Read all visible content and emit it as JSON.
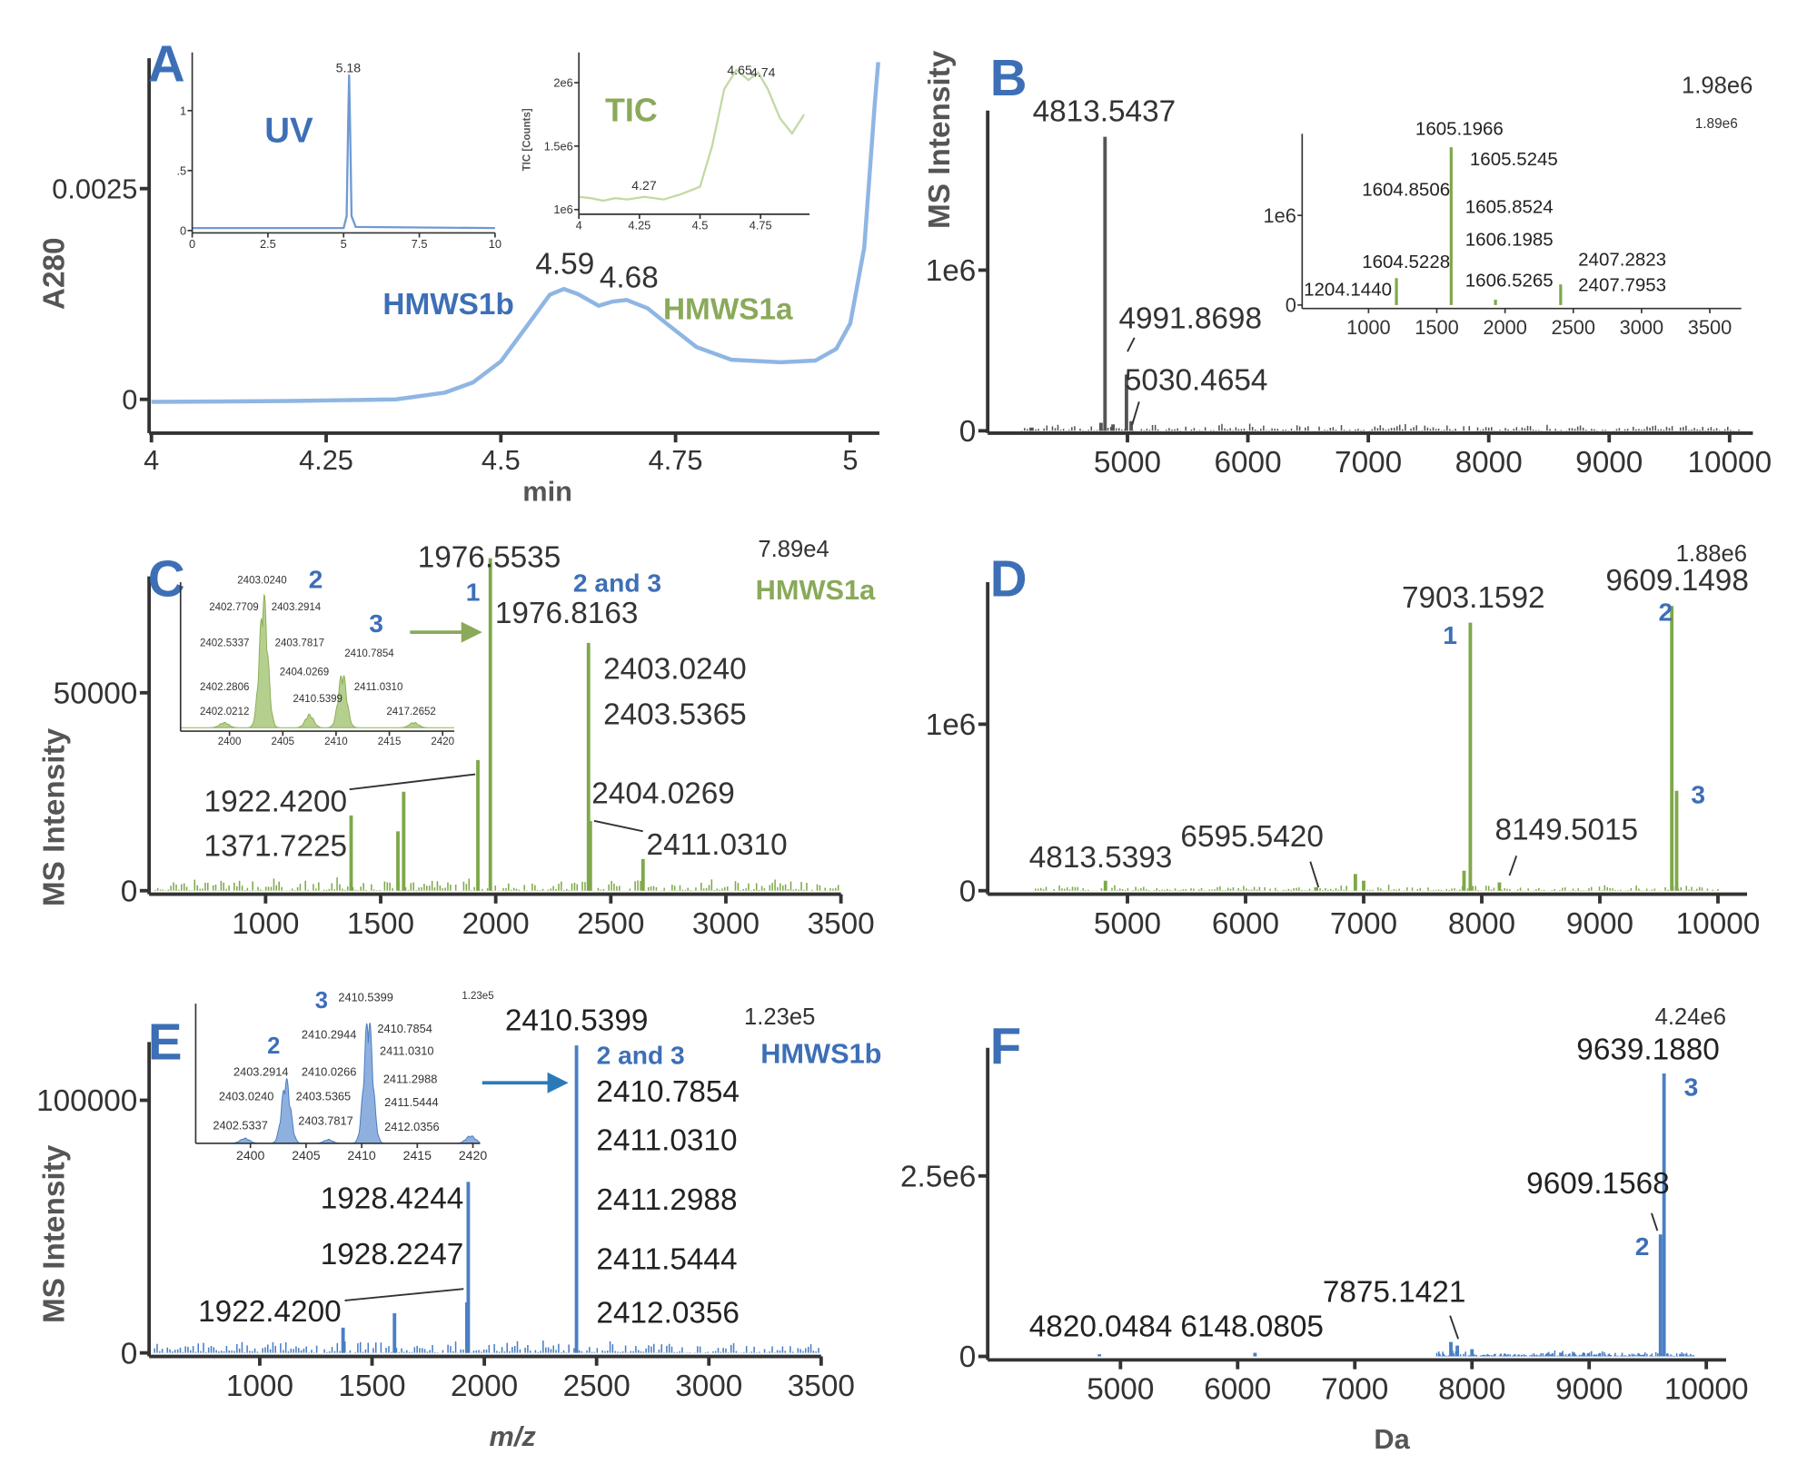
{
  "colors": {
    "blue": "#3d6fb6",
    "green": "#8aa95a",
    "uv_trace": "#8fb6e3",
    "tic_trace": "#c3d9a4",
    "gray_spectrum": "#555555",
    "green_spectrum": "#7ea84a",
    "blue_spectrum": "#4a7fc4"
  },
  "chart_data": [
    {
      "panel": "A",
      "letter": "A",
      "type": "line",
      "xlabel": "min",
      "ylabel": "A280",
      "xticks": [
        "4",
        "4.25",
        "4.5",
        "4.75",
        "5"
      ],
      "yticks": [
        "0",
        "0.0025"
      ],
      "xlim": [
        4,
        5.04
      ],
      "ylim": [
        -0.00045,
        0.004
      ],
      "points": [
        [
          4.0,
          -3e-05
        ],
        [
          4.2,
          -2e-05
        ],
        [
          4.35,
          0.0
        ],
        [
          4.42,
          8e-05
        ],
        [
          4.46,
          0.0002
        ],
        [
          4.5,
          0.00045
        ],
        [
          4.54,
          0.0009
        ],
        [
          4.57,
          0.00124
        ],
        [
          4.59,
          0.00131
        ],
        [
          4.61,
          0.00125
        ],
        [
          4.64,
          0.00111
        ],
        [
          4.66,
          0.00116
        ],
        [
          4.68,
          0.00118
        ],
        [
          4.71,
          0.00108
        ],
        [
          4.74,
          0.00088
        ],
        [
          4.78,
          0.00062
        ],
        [
          4.83,
          0.00047
        ],
        [
          4.9,
          0.00044
        ],
        [
          4.95,
          0.00046
        ],
        [
          4.98,
          0.0006
        ],
        [
          5.0,
          0.0009
        ],
        [
          5.02,
          0.0018
        ],
        [
          5.035,
          0.0035
        ],
        [
          5.04,
          0.004
        ]
      ],
      "annotations": [
        {
          "text": "4.59"
        },
        {
          "text": "4.68"
        },
        {
          "text": "HMWS1b"
        },
        {
          "text": "HMWS1a"
        }
      ]
    },
    {
      "panel": "A-inset-UV",
      "type": "line",
      "title": "UV",
      "xticks": [
        "0",
        "2.5",
        "5",
        "7.5",
        "10"
      ],
      "yticks": [
        "0",
        ".5",
        "1"
      ],
      "xlim": [
        0,
        10
      ],
      "points": [
        [
          0,
          0.02
        ],
        [
          5.0,
          0.02
        ],
        [
          5.1,
          0.12
        ],
        [
          5.15,
          0.9
        ],
        [
          5.18,
          1.3
        ],
        [
          5.21,
          0.9
        ],
        [
          5.26,
          0.12
        ],
        [
          5.4,
          0.03
        ],
        [
          10,
          0.02
        ]
      ],
      "annotations": [
        {
          "text": "UV"
        },
        {
          "text": "5.18"
        }
      ]
    },
    {
      "panel": "A-inset-TIC",
      "type": "line",
      "title": "TIC",
      "ylabel": "TIC [Counts]",
      "xticks": [
        "4",
        "4.25",
        "4.5",
        "4.75"
      ],
      "yticks": [
        "1e6",
        "1.5e6",
        "2e6"
      ],
      "points": [
        [
          4,
          1100000.0
        ],
        [
          4.05,
          1090000.0
        ],
        [
          4.1,
          1070000.0
        ],
        [
          4.15,
          1090000.0
        ],
        [
          4.2,
          1080000.0
        ],
        [
          4.27,
          1100000.0
        ],
        [
          4.35,
          1080000.0
        ],
        [
          4.42,
          1120000.0
        ],
        [
          4.5,
          1180000.0
        ],
        [
          4.55,
          1500000.0
        ],
        [
          4.6,
          1950000.0
        ],
        [
          4.65,
          2100000.0
        ],
        [
          4.7,
          2020000.0
        ],
        [
          4.74,
          2080000.0
        ],
        [
          4.78,
          1950000.0
        ],
        [
          4.83,
          1720000.0
        ],
        [
          4.88,
          1600000.0
        ],
        [
          4.93,
          1750000.0
        ]
      ],
      "annotations": [
        {
          "text": "TIC"
        },
        {
          "text": "4.27"
        },
        {
          "text": "4.65"
        },
        {
          "text": "4.74"
        }
      ]
    },
    {
      "panel": "B",
      "letter": "B",
      "type": "bar",
      "ylabel": "MS Intensity",
      "scale_max": "1.98e6",
      "xticks": [
        "5000",
        "6000",
        "7000",
        "8000",
        "9000",
        "10000"
      ],
      "yticks": [
        "0",
        "1e6"
      ],
      "peaks": [
        [
          4200,
          20000.0
        ],
        [
          4780,
          50000.0
        ],
        [
          4813.5437,
          1830000.0
        ],
        [
          4880,
          40000.0
        ],
        [
          4991.8698,
          350000.0
        ],
        [
          5030.4654,
          60000.0
        ]
      ],
      "annotations": [
        {
          "text": "4813.5437"
        },
        {
          "text": "4991.8698"
        },
        {
          "text": "5030.4654"
        }
      ]
    },
    {
      "panel": "B-inset",
      "type": "bar",
      "scale_max": "1.89e6",
      "xticks": [
        "1000",
        "1500",
        "2000",
        "2500",
        "3000",
        "3500"
      ],
      "yticks": [
        "0",
        "1e6"
      ],
      "peaks": [
        [
          1204.144,
          300000.0
        ],
        [
          1605.1966,
          1760000.0
        ],
        [
          1930,
          60000.0
        ],
        [
          2407.2823,
          230000.0
        ]
      ],
      "annotations": [
        {
          "text": "1605.1966"
        },
        {
          "text": "1605.5245"
        },
        {
          "text": "1604.8506"
        },
        {
          "text": "1605.8524"
        },
        {
          "text": "1606.1985"
        },
        {
          "text": "1604.5228"
        },
        {
          "text": "1606.5265"
        },
        {
          "text": "1204.1440"
        },
        {
          "text": "2407.2823"
        },
        {
          "text": "2407.7953"
        }
      ]
    },
    {
      "panel": "C",
      "letter": "C",
      "type": "bar",
      "ylabel": "MS Intensity",
      "scale_max": "7.89e4",
      "species": "HMWS1a",
      "xticks": [
        "1000",
        "1500",
        "2000",
        "2500",
        "3000",
        "3500"
      ],
      "yticks": [
        "0",
        "50000"
      ],
      "peaks": [
        [
          1371.7225,
          19000
        ],
        [
          1575,
          15000
        ],
        [
          1600,
          25000
        ],
        [
          1922.42,
          33000
        ],
        [
          1976.5535,
          84000
        ],
        [
          2403.024,
          62600
        ],
        [
          2411.031,
          17600
        ],
        [
          2640,
          8000
        ]
      ],
      "annotations": [
        {
          "text": "1976.5535"
        },
        {
          "text": "1976.8163"
        },
        {
          "text": "2403.0240"
        },
        {
          "text": "2403.5365"
        },
        {
          "text": "2404.0269"
        },
        {
          "text": "2411.0310"
        },
        {
          "text": "1922.4200"
        },
        {
          "text": "1371.7225"
        },
        {
          "text": "1"
        },
        {
          "text": "2 and 3"
        },
        {
          "text": "2"
        },
        {
          "text": "3"
        }
      ]
    },
    {
      "panel": "C-inset",
      "type": "area",
      "xticks": [
        "2400",
        "2405",
        "2410",
        "2415",
        "2420"
      ],
      "clusters": [
        [
          2399.5,
          4
        ],
        [
          2403.2,
          100
        ],
        [
          2407.5,
          10
        ],
        [
          2410.6,
          42
        ],
        [
          2417.3,
          4
        ]
      ],
      "annotations": [
        {
          "text": "2403.0240"
        },
        {
          "text": "2402.7709"
        },
        {
          "text": "2403.2914"
        },
        {
          "text": "2402.5337"
        },
        {
          "text": "2403.7817"
        },
        {
          "text": "2410.7854"
        },
        {
          "text": "2404.0269"
        },
        {
          "text": "2402.2806"
        },
        {
          "text": "2410.5399"
        },
        {
          "text": "2411.0310"
        },
        {
          "text": "2402.0212"
        },
        {
          "text": "2417.2652"
        }
      ]
    },
    {
      "panel": "D",
      "letter": "D",
      "type": "bar",
      "scale_max": "1.88e6",
      "xticks": [
        "5000",
        "6000",
        "7000",
        "8000",
        "9000",
        "10000"
      ],
      "yticks": [
        "0",
        "1e6"
      ],
      "peaks": [
        [
          4813.5393,
          60000.0
        ],
        [
          6595.542,
          20000.0
        ],
        [
          6930,
          100000.0
        ],
        [
          7000,
          60000.0
        ],
        [
          7850,
          120000.0
        ],
        [
          7903.1592,
          1610000.0
        ],
        [
          8149.5015,
          50000.0
        ],
        [
          9609.1498,
          1710000.0
        ],
        [
          9650,
          600000.0
        ]
      ],
      "annotations": [
        {
          "text": "7903.1592"
        },
        {
          "text": "9609.1498"
        },
        {
          "text": "4813.5393"
        },
        {
          "text": "6595.5420"
        },
        {
          "text": "8149.5015"
        },
        {
          "text": "1"
        },
        {
          "text": "2"
        },
        {
          "text": "3"
        }
      ]
    },
    {
      "panel": "E",
      "letter": "E",
      "type": "bar",
      "xlabel": "m/z",
      "ylabel": "MS Intensity",
      "scale_max": "1.23e5",
      "species": "HMWS1b",
      "xticks": [
        "1000",
        "1500",
        "2000",
        "2500",
        "3000",
        "3500"
      ],
      "yticks": [
        "0",
        "100000"
      ],
      "peaks": [
        [
          1371,
          10000
        ],
        [
          1600,
          15700
        ],
        [
          1922.42,
          20000
        ],
        [
          1928.4244,
          67700
        ],
        [
          2410.5399,
          121700
        ]
      ],
      "annotations": [
        {
          "text": "2410.5399"
        },
        {
          "text": "2410.7854"
        },
        {
          "text": "2411.0310"
        },
        {
          "text": "2411.2988"
        },
        {
          "text": "2411.5444"
        },
        {
          "text": "2412.0356"
        },
        {
          "text": "1928.4244"
        },
        {
          "text": "1928.2247"
        },
        {
          "text": "1922.4200"
        },
        {
          "text": "2 and 3"
        }
      ]
    },
    {
      "panel": "E-inset",
      "type": "area",
      "scale_max": "1.23e5",
      "xticks": [
        "2400",
        "2405",
        "2410",
        "2415",
        "2420"
      ],
      "clusters": [
        [
          2399.5,
          4
        ],
        [
          2403.2,
          50
        ],
        [
          2407,
          3
        ],
        [
          2410.6,
          100
        ],
        [
          2419.8,
          6
        ]
      ],
      "annotations": [
        {
          "text": "2410.5399"
        },
        {
          "text": "2410.2944"
        },
        {
          "text": "2410.7854"
        },
        {
          "text": "2411.0310"
        },
        {
          "text": "2403.2914"
        },
        {
          "text": "2410.0266"
        },
        {
          "text": "2411.2988"
        },
        {
          "text": "2403.0240"
        },
        {
          "text": "2403.5365"
        },
        {
          "text": "2411.5444"
        },
        {
          "text": "2402.5337"
        },
        {
          "text": "2403.7817"
        },
        {
          "text": "2412.0356"
        },
        {
          "text": "3"
        },
        {
          "text": "2"
        }
      ]
    },
    {
      "panel": "F",
      "letter": "F",
      "type": "bar",
      "xlabel": "Da",
      "scale_max": "4.24e6",
      "xticks": [
        "5000",
        "6000",
        "7000",
        "8000",
        "9000",
        "10000"
      ],
      "yticks": [
        "0",
        "2.5e6"
      ],
      "peaks": [
        [
          4820.0484,
          30000.0
        ],
        [
          6148.0805,
          50000.0
        ],
        [
          7820,
          200000.0
        ],
        [
          7875.1421,
          150000.0
        ],
        [
          8000,
          100000.0
        ],
        [
          9609.1568,
          1690000.0
        ],
        [
          9639.188,
          3920000.0
        ]
      ],
      "annotations": [
        {
          "text": "9639.1880"
        },
        {
          "text": "9609.1568"
        },
        {
          "text": "7875.1421"
        },
        {
          "text": "4820.0484"
        },
        {
          "text": "6148.0805"
        },
        {
          "text": "3"
        },
        {
          "text": "2"
        }
      ]
    }
  ]
}
